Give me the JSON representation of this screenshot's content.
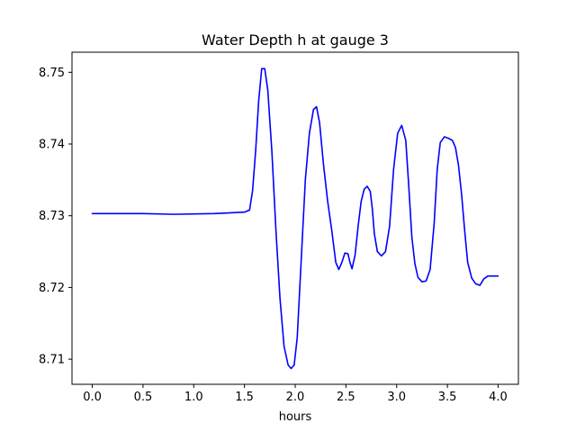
{
  "chart_data": {
    "type": "line",
    "title": "Water Depth h at gauge 3",
    "xlabel": "hours",
    "ylabel": "",
    "xlim": [
      -0.2,
      4.2
    ],
    "ylim": [
      8.7065,
      8.7528
    ],
    "xticks": [
      0.0,
      0.5,
      1.0,
      1.5,
      2.0,
      2.5,
      3.0,
      3.5,
      4.0
    ],
    "xtick_labels": [
      "0.0",
      "0.5",
      "1.0",
      "1.5",
      "2.0",
      "2.5",
      "3.0",
      "3.5",
      "4.0"
    ],
    "yticks": [
      8.71,
      8.72,
      8.73,
      8.74,
      8.75
    ],
    "ytick_labels": [
      "8.71",
      "8.72",
      "8.73",
      "8.74",
      "8.75"
    ],
    "grid": false,
    "legend": "none",
    "series": [
      {
        "color": "#0000ff",
        "x": [
          0.0,
          0.5,
          0.8,
          1.2,
          1.5,
          1.55,
          1.58,
          1.61,
          1.64,
          1.67,
          1.7,
          1.73,
          1.77,
          1.81,
          1.85,
          1.89,
          1.93,
          1.96,
          1.99,
          2.02,
          2.06,
          2.1,
          2.14,
          2.18,
          2.21,
          2.24,
          2.28,
          2.32,
          2.36,
          2.4,
          2.43,
          2.46,
          2.49,
          2.52,
          2.54,
          2.56,
          2.59,
          2.62,
          2.65,
          2.68,
          2.71,
          2.74,
          2.76,
          2.78,
          2.81,
          2.85,
          2.89,
          2.93,
          2.97,
          3.01,
          3.05,
          3.09,
          3.12,
          3.15,
          3.18,
          3.21,
          3.25,
          3.29,
          3.33,
          3.37,
          3.4,
          3.43,
          3.47,
          3.51,
          3.55,
          3.58,
          3.61,
          3.64,
          3.67,
          3.7,
          3.74,
          3.78,
          3.82,
          3.86,
          3.9,
          3.93,
          3.96,
          3.98,
          4.0
        ],
        "y": [
          8.7303,
          8.7303,
          8.7302,
          8.7303,
          8.7305,
          8.7308,
          8.7335,
          8.739,
          8.746,
          8.7505,
          8.7505,
          8.7475,
          8.739,
          8.728,
          8.7185,
          8.7118,
          8.7092,
          8.7087,
          8.7092,
          8.713,
          8.724,
          8.735,
          8.7415,
          8.7448,
          8.7452,
          8.743,
          8.737,
          8.732,
          8.728,
          8.7235,
          8.7225,
          8.7235,
          8.7248,
          8.7247,
          8.7235,
          8.7226,
          8.7245,
          8.7285,
          8.732,
          8.7337,
          8.7341,
          8.7334,
          8.731,
          8.7275,
          8.725,
          8.7244,
          8.725,
          8.7285,
          8.7365,
          8.7415,
          8.7426,
          8.7405,
          8.734,
          8.727,
          8.7233,
          8.7214,
          8.7208,
          8.7209,
          8.7225,
          8.729,
          8.7365,
          8.7402,
          8.741,
          8.7408,
          8.7405,
          8.7395,
          8.737,
          8.733,
          8.728,
          8.7235,
          8.7213,
          8.7205,
          8.7203,
          8.7212,
          8.7216,
          8.7216,
          8.7216,
          8.7216,
          8.7216
        ]
      }
    ]
  }
}
